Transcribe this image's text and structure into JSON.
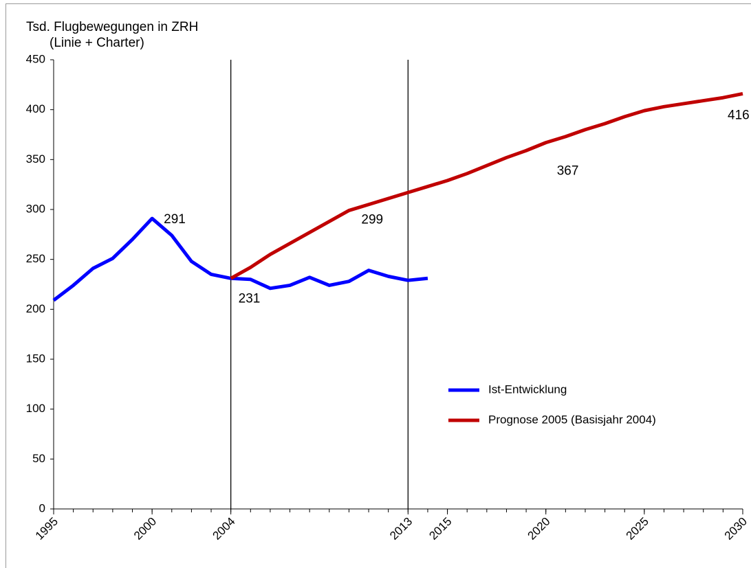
{
  "chart_data": {
    "type": "line",
    "title": "Tsd. Flugbewegungen in ZRH",
    "subtitle": "(Linie + Charter)",
    "x": [
      1995,
      1996,
      1997,
      1998,
      1999,
      2000,
      2001,
      2002,
      2003,
      2004,
      2005,
      2006,
      2007,
      2008,
      2009,
      2010,
      2011,
      2012,
      2013,
      2014,
      2015,
      2016,
      2017,
      2018,
      2019,
      2020,
      2021,
      2022,
      2023,
      2024,
      2025,
      2026,
      2027,
      2028,
      2029,
      2030
    ],
    "series": [
      {
        "name": "Ist-Entwicklung",
        "color": "#0000ff",
        "values": [
          209,
          224,
          241,
          251,
          270,
          291,
          274,
          248,
          235,
          231,
          230,
          221,
          224,
          232,
          224,
          228,
          239,
          233,
          229,
          231,
          null,
          null,
          null,
          null,
          null,
          null,
          null,
          null,
          null,
          null,
          null,
          null,
          null,
          null,
          null,
          null
        ],
        "value_labels": [
          null,
          null,
          null,
          null,
          null,
          "291",
          null,
          null,
          null,
          "231",
          null,
          null,
          null,
          null,
          null,
          null,
          null,
          null,
          null,
          null,
          null,
          null,
          null,
          null,
          null,
          null,
          null,
          null,
          null,
          null,
          null,
          null,
          null,
          null,
          null,
          null
        ]
      },
      {
        "name": "Prognose 2005 (Basisjahr 2004)",
        "color": "#c00000",
        "values": [
          null,
          null,
          null,
          null,
          null,
          null,
          null,
          null,
          null,
          231,
          242,
          255,
          266,
          277,
          288,
          299,
          305,
          311,
          317,
          323,
          329,
          336,
          344,
          352,
          359,
          367,
          373,
          380,
          386,
          393,
          399,
          403,
          406,
          409,
          412,
          416
        ],
        "value_labels": [
          null,
          null,
          null,
          null,
          null,
          null,
          null,
          null,
          null,
          null,
          null,
          null,
          null,
          null,
          null,
          "299",
          null,
          null,
          null,
          null,
          null,
          null,
          null,
          null,
          null,
          "367",
          null,
          null,
          null,
          null,
          null,
          null,
          null,
          null,
          null,
          "416"
        ]
      }
    ],
    "xlim": [
      1995,
      2030
    ],
    "xticks": [
      1995,
      2000,
      2004,
      2013,
      2015,
      2020,
      2025,
      2030
    ],
    "ylim": [
      0,
      450
    ],
    "yticks": [
      0,
      50,
      100,
      150,
      200,
      250,
      300,
      350,
      400,
      450
    ],
    "vlines": [
      2004,
      2013
    ],
    "grid": false,
    "legend": "right"
  }
}
